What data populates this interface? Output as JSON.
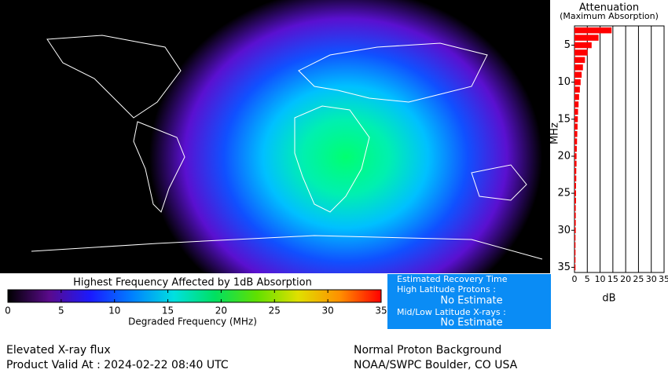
{
  "chart_data": {
    "type": "bar",
    "title": "Attenuation",
    "subtitle": "(Maximum Absorption)",
    "ylabel": "MHz",
    "xlabel": "dB",
    "categories": [
      3,
      4,
      5,
      6,
      7,
      8,
      9,
      10,
      11,
      12,
      13,
      14,
      15,
      16,
      17,
      18,
      19,
      20,
      21,
      22,
      23,
      24,
      25,
      26,
      27,
      28,
      29,
      30,
      31,
      32,
      33,
      34,
      35
    ],
    "values": [
      14.5,
      9.4,
      6.7,
      5.1,
      4.1,
      3.3,
      2.8,
      2.4,
      2.1,
      1.8,
      1.6,
      1.4,
      1.3,
      1.2,
      1.1,
      1.0,
      0.9,
      0.8,
      0.8,
      0.7,
      0.7,
      0.6,
      0.6,
      0.6,
      0.5,
      0.5,
      0.5,
      0.5,
      0.4,
      0.4,
      0.4,
      0.4,
      0.4
    ],
    "color": "#ff0000",
    "xlim": [
      0,
      35
    ],
    "xticks": [
      0,
      5,
      10,
      15,
      20,
      25,
      30,
      35
    ],
    "ylim": [
      2.4,
      35.7
    ],
    "yticks": [
      5,
      10,
      15,
      20,
      25,
      30,
      35
    ],
    "grid": true
  },
  "colorbar": {
    "title": "Highest Frequency Affected by 1dB Absorption",
    "label": "Degraded Frequency (MHz)",
    "lim": [
      0,
      35
    ],
    "ticks": [
      0,
      5,
      10,
      15,
      20,
      25,
      30,
      35
    ],
    "colors": [
      "#000000",
      "#5a0a8c",
      "#1a1aff",
      "#0080ff",
      "#00e0e0",
      "#00e060",
      "#60e000",
      "#e0e000",
      "#ff9000",
      "#ff0000"
    ]
  },
  "recovery": {
    "title": "Estimated Recovery Time",
    "protons_label": "High Latitude Protons :",
    "protons_value": "No Estimate",
    "xrays_label": "Mid/Low Latitude X-rays :",
    "xrays_value": "No Estimate"
  },
  "footer": {
    "status": "Elevated X-ray flux",
    "valid": "Product Valid At : 2024-02-22 08:40 UTC",
    "proton": "Normal Proton Background",
    "source": "NOAA/SWPC Boulder, CO USA"
  }
}
